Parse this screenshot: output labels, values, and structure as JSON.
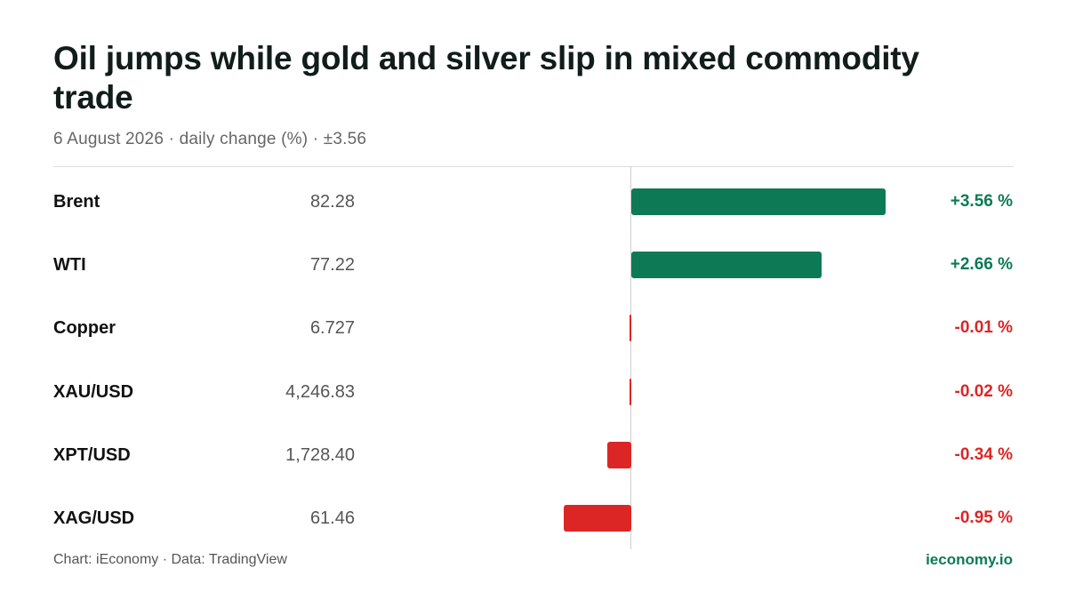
{
  "title": "Oil jumps while gold and silver slip in mixed commodity trade",
  "subtitle": "6 August 2026 · daily change (%) · ±3.56",
  "footer": {
    "source": "Chart: iEconomy · Data: TradingView",
    "brand": "ieconomy.io"
  },
  "colors": {
    "positive": "#0e7a55",
    "negative": "#dc2626"
  },
  "chart_data": {
    "type": "bar",
    "orientation": "horizontal",
    "title": "Oil jumps while gold and silver slip in mixed commodity trade",
    "subtitle": "6 August 2026 · daily change (%) · ±3.56",
    "xlim": [
      -3.56,
      3.56
    ],
    "categories": [
      "Brent",
      "WTI",
      "Copper",
      "XAU/USD",
      "XPT/USD",
      "XAG/USD"
    ],
    "prices": [
      "82.28",
      "77.22",
      "6.727",
      "4,246.83",
      "1,728.40",
      "61.46"
    ],
    "values": [
      3.56,
      2.66,
      -0.01,
      -0.02,
      -0.34,
      -0.95
    ],
    "value_labels": [
      "+3.56 %",
      "+2.66 %",
      "-0.01 %",
      "-0.02 %",
      "-0.34 %",
      "-0.95 %"
    ]
  }
}
